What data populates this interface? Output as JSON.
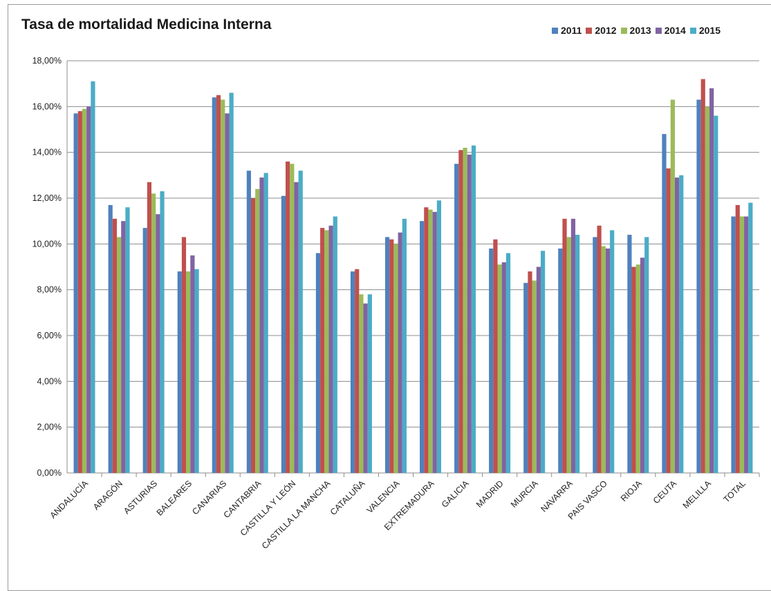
{
  "chart_data": {
    "type": "bar",
    "title": "Tasa de mortalidad Medicina Interna",
    "xlabel": "",
    "ylabel": "",
    "ylim": [
      0,
      18
    ],
    "yticks": [
      "0,00%",
      "2,00%",
      "4,00%",
      "6,00%",
      "8,00%",
      "10,00%",
      "12,00%",
      "14,00%",
      "16,00%",
      "18,00%"
    ],
    "grid": true,
    "legend_position": "top-right",
    "categories": [
      "ANDALUCÍA",
      "ARAGÓN",
      "ASTURIAS",
      "BALEARES",
      "CANARIAS",
      "CANTABRIA",
      "CASTILLA Y LEÓN",
      "CASTILLA LA MANCHA",
      "CATALUÑA",
      "VALENCIA",
      "EXTREMADURA",
      "GALICIA",
      "MADRID",
      "MURCIA",
      "NAVARRA",
      "PAIS VASCO",
      "RIOJA",
      "CEUTA",
      "MELILLA",
      "TOTAL"
    ],
    "series": [
      {
        "name": "2011",
        "color": "#4f81bd",
        "values": [
          15.7,
          11.7,
          10.7,
          8.8,
          16.4,
          13.2,
          12.1,
          9.6,
          8.8,
          10.3,
          11.0,
          13.5,
          9.8,
          8.3,
          9.8,
          10.3,
          10.4,
          14.8,
          16.3,
          11.2
        ]
      },
      {
        "name": "2012",
        "color": "#c0504d",
        "values": [
          15.8,
          11.1,
          12.7,
          10.3,
          16.5,
          12.0,
          13.6,
          10.7,
          8.9,
          10.2,
          11.6,
          14.1,
          10.2,
          8.8,
          11.1,
          10.8,
          9.0,
          13.3,
          17.2,
          11.7
        ]
      },
      {
        "name": "2013",
        "color": "#9bbb59",
        "values": [
          15.9,
          10.3,
          12.2,
          8.8,
          16.3,
          12.4,
          13.5,
          10.6,
          7.8,
          10.0,
          11.5,
          14.2,
          9.1,
          8.4,
          10.3,
          9.9,
          9.1,
          16.3,
          16.0,
          11.2
        ]
      },
      {
        "name": "2014",
        "color": "#8064a2",
        "values": [
          16.0,
          11.0,
          11.3,
          9.5,
          15.7,
          12.9,
          12.7,
          10.8,
          7.4,
          10.5,
          11.4,
          13.9,
          9.2,
          9.0,
          11.1,
          9.8,
          9.4,
          12.9,
          16.8,
          11.2
        ]
      },
      {
        "name": "2015",
        "color": "#4bacc6",
        "values": [
          17.1,
          11.6,
          12.3,
          8.9,
          16.6,
          13.1,
          13.2,
          11.2,
          7.8,
          11.1,
          11.9,
          14.3,
          9.6,
          9.7,
          10.4,
          10.6,
          10.3,
          13.0,
          15.6,
          11.8
        ]
      }
    ]
  }
}
